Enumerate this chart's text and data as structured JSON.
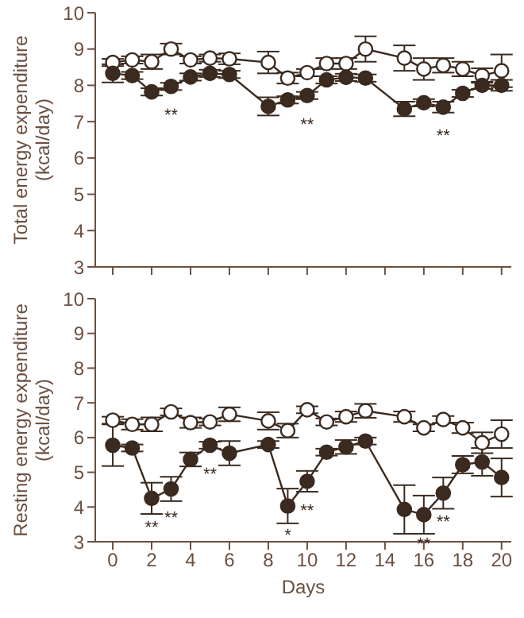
{
  "chart_data": [
    {
      "type": "line",
      "ylabel": "Total energy expenditure\n(kcal/day)",
      "x": [
        0,
        1,
        2,
        3,
        4,
        5,
        6,
        8,
        9,
        10,
        11,
        12,
        13,
        15,
        16,
        17,
        18,
        19,
        20
      ],
      "series": [
        {
          "color": "#3b2a1f",
          "values": [
            8.63,
            8.7,
            8.65,
            9.0,
            8.7,
            8.75,
            8.73,
            8.63,
            8.2,
            8.35,
            8.6,
            8.6,
            9.0,
            8.75,
            8.45,
            8.55,
            8.45,
            8.27,
            8.4
          ],
          "errors": [
            0.1,
            0.1,
            0.2,
            0.15,
            0.1,
            0.1,
            0.15,
            0.3,
            0.15,
            0.1,
            0.15,
            0.15,
            0.35,
            0.35,
            0.3,
            0.2,
            0.2,
            0.2,
            0.45
          ]
        },
        {
          "color": "#3b2a1f",
          "values": [
            8.33,
            8.27,
            7.82,
            7.97,
            8.23,
            8.33,
            8.3,
            7.42,
            7.6,
            7.72,
            8.15,
            8.22,
            8.2,
            7.35,
            7.52,
            7.4,
            7.78,
            8.0,
            8.0
          ],
          "errors": [
            0.25,
            0.1,
            0.1,
            0.1,
            0.1,
            0.1,
            0.1,
            0.25,
            0.1,
            0.1,
            0.1,
            0.1,
            0.1,
            0.2,
            0.1,
            0.15,
            0.1,
            0.1,
            0.15
          ]
        }
      ],
      "xlim": [
        -0.9,
        20.5
      ],
      "xticks": [
        0,
        2,
        4,
        6,
        8,
        10,
        12,
        14,
        16,
        18,
        20
      ],
      "ylim": [
        3,
        10
      ],
      "yticks": [
        3,
        4,
        5,
        6,
        7,
        8,
        9,
        10
      ],
      "tick_labels": "y",
      "grid": false,
      "legend": false,
      "marker": "circle",
      "line_style": "solid",
      "annotations": [
        {
          "text": "**",
          "x": 3,
          "y": 7.97
        },
        {
          "text": "**",
          "x": 10,
          "y": 7.72
        },
        {
          "text": "**",
          "x": 17,
          "y": 7.4
        }
      ]
    },
    {
      "type": "line",
      "xlabel": "Days",
      "ylabel": "Resting energy expenditure\n(kcal/day)",
      "x": [
        0,
        1,
        2,
        3,
        4,
        5,
        6,
        8,
        9,
        10,
        11,
        12,
        13,
        15,
        16,
        17,
        18,
        19,
        20
      ],
      "series": [
        {
          "color": "#3b2a1f",
          "values": [
            6.5,
            6.38,
            6.38,
            6.74,
            6.43,
            6.45,
            6.67,
            6.48,
            6.2,
            6.8,
            6.45,
            6.6,
            6.77,
            6.6,
            6.28,
            6.52,
            6.28,
            5.85,
            6.1
          ],
          "errors": [
            0.1,
            0.15,
            0.2,
            0.1,
            0.15,
            0.1,
            0.2,
            0.25,
            0.2,
            0.1,
            0.1,
            0.15,
            0.2,
            0.15,
            0.1,
            0.1,
            0.15,
            0.3,
            0.4
          ]
        },
        {
          "color": "#3b2a1f",
          "values": [
            5.78,
            5.7,
            4.25,
            4.52,
            5.37,
            5.78,
            5.55,
            5.8,
            4.03,
            4.74,
            5.58,
            5.73,
            5.9,
            3.93,
            3.78,
            4.4,
            5.22,
            5.3,
            4.85
          ],
          "errors": [
            0.6,
            0.1,
            0.45,
            0.35,
            0.2,
            0.1,
            0.35,
            0.1,
            0.5,
            0.3,
            0.1,
            0.2,
            0.1,
            0.7,
            0.55,
            0.45,
            0.25,
            0.4,
            0.55
          ]
        }
      ],
      "xlim": [
        -0.9,
        20.5
      ],
      "xticks": [
        0,
        2,
        4,
        6,
        8,
        10,
        12,
        14,
        16,
        18,
        20
      ],
      "ylim": [
        3,
        10
      ],
      "yticks": [
        3,
        4,
        5,
        6,
        7,
        8,
        9,
        10
      ],
      "grid": false,
      "legend": false,
      "marker": "circle",
      "line_style": "solid",
      "annotations": [
        {
          "text": "**",
          "x": 2,
          "y": 4.25
        },
        {
          "text": "**",
          "x": 3,
          "y": 4.52
        },
        {
          "text": "**",
          "x": 5,
          "y": 5.78
        },
        {
          "text": "*",
          "x": 9,
          "y": 4.03
        },
        {
          "text": "**",
          "x": 10,
          "y": 4.74
        },
        {
          "text": "**",
          "x": 16,
          "y": 3.78
        },
        {
          "text": "**",
          "x": 17,
          "y": 4.4
        }
      ]
    }
  ]
}
